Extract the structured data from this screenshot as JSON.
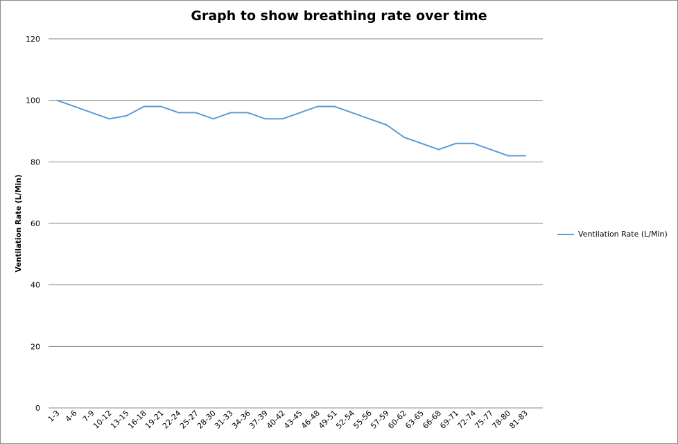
{
  "chart_data": {
    "type": "line",
    "title": "Graph to show breathing rate over time",
    "xlabel": "",
    "ylabel": "Ventilation Rate (L/Min)",
    "ylim": [
      0,
      120
    ],
    "yticks": [
      0,
      20,
      40,
      60,
      80,
      100,
      120
    ],
    "grid": true,
    "legend_position": "right",
    "categories": [
      "1-3",
      "4-6",
      "7-9",
      "10-12",
      "13-15",
      "16-18",
      "19-21",
      "22-24",
      "25-27",
      "28-30",
      "31-33",
      "34-36",
      "37-39",
      "40-42",
      "43-45",
      "46-48",
      "49-51",
      "52-54",
      "55-56",
      "57-59",
      "60-62",
      "63-65",
      "66-68",
      "69-71",
      "72-74",
      "75-77",
      "78-80",
      "81-83"
    ],
    "series": [
      {
        "name": "Ventilation Rate (L/Min)",
        "color": "#5b9bd5",
        "values": [
          100,
          98,
          96,
          94,
          95,
          98,
          98,
          96,
          96,
          94,
          96,
          96,
          94,
          94,
          96,
          98,
          98,
          96,
          94,
          92,
          88,
          86,
          84,
          86,
          86,
          84,
          82,
          82
        ]
      }
    ]
  }
}
